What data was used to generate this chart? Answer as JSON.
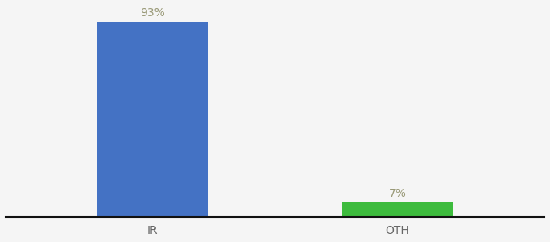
{
  "categories": [
    "IR",
    "OTH"
  ],
  "values": [
    93,
    7
  ],
  "bar_colors": [
    "#4472c4",
    "#3dbb3d"
  ],
  "background_color": "#f5f5f5",
  "ylim": [
    0,
    100
  ],
  "bar_width": 0.45,
  "label_fontsize": 10,
  "tick_fontsize": 10,
  "tick_color": "#666666",
  "label_color": "#999977",
  "axis_line_color": "#111111",
  "x_positions": [
    0,
    1
  ],
  "xlim": [
    -0.6,
    1.6
  ]
}
